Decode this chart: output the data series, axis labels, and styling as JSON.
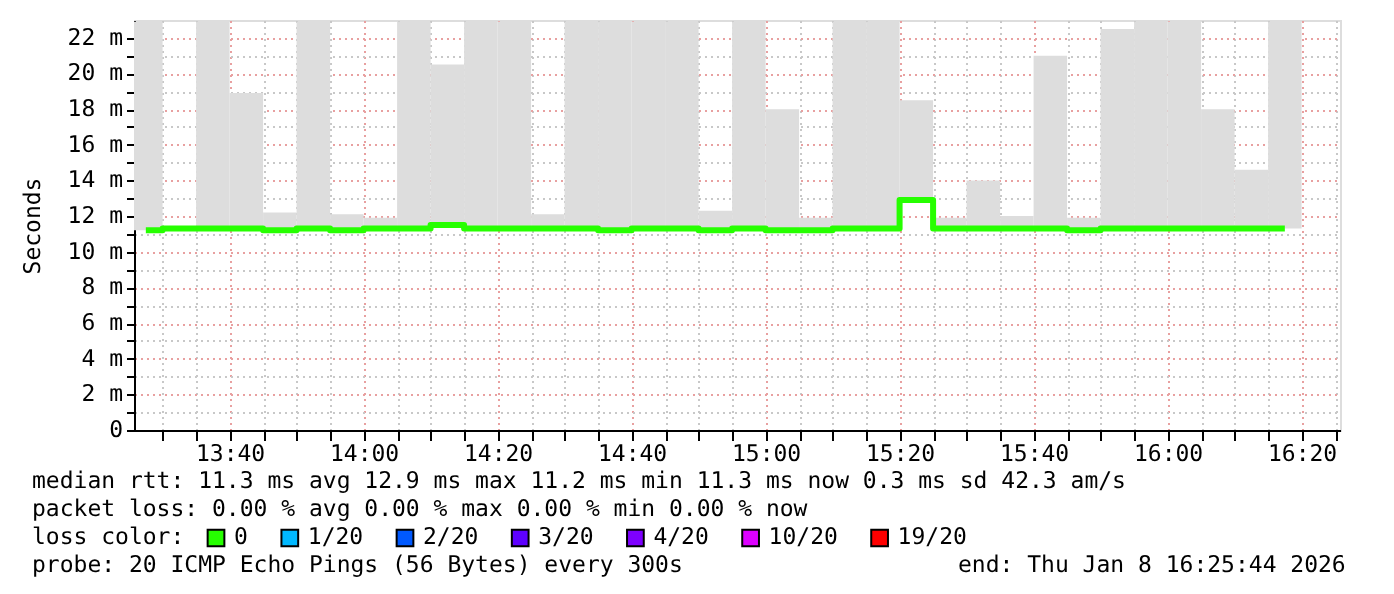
{
  "chart_data": {
    "type": "bar",
    "ylabel": "Seconds",
    "legend_title": "loss color:",
    "legend": "bottom",
    "grid": true,
    "x": [
      "2026-01-08T13:27:30",
      "2026-01-08T13:32:30",
      "2026-01-08T13:37:30",
      "2026-01-08T13:42:30",
      "2026-01-08T13:47:30",
      "2026-01-08T13:52:30",
      "2026-01-08T13:57:30",
      "2026-01-08T14:02:30",
      "2026-01-08T14:07:30",
      "2026-01-08T14:12:30",
      "2026-01-08T14:17:30",
      "2026-01-08T14:22:30",
      "2026-01-08T14:27:30",
      "2026-01-08T14:32:30",
      "2026-01-08T14:37:30",
      "2026-01-08T14:42:30",
      "2026-01-08T14:47:30",
      "2026-01-08T14:52:30",
      "2026-01-08T14:57:30",
      "2026-01-08T15:02:30",
      "2026-01-08T15:07:30",
      "2026-01-08T15:12:30",
      "2026-01-08T15:17:30",
      "2026-01-08T15:22:30",
      "2026-01-08T15:27:30",
      "2026-01-08T15:32:30",
      "2026-01-08T15:37:30",
      "2026-01-08T15:42:30",
      "2026-01-08T15:47:30",
      "2026-01-08T15:52:30",
      "2026-01-08T15:57:30",
      "2026-01-08T16:02:30",
      "2026-01-08T16:07:30",
      "2026-01-08T16:12:30",
      "2026-01-08T16:17:30"
    ],
    "series": [
      {
        "color": "#dddddd",
        "base": [
          11.2,
          11.3,
          11.3,
          11.3,
          11.2,
          11.3,
          11.2,
          11.3,
          11.3,
          11.5,
          11.3,
          11.3,
          11.3,
          11.3,
          11.2,
          11.3,
          11.3,
          11.2,
          11.3,
          11.2,
          11.2,
          11.3,
          11.3,
          12.9,
          11.3,
          11.3,
          11.3,
          11.3,
          11.2,
          11.3,
          11.3,
          11.3,
          11.3,
          11.3,
          11.3
        ],
        "values": [
          11.7,
          0.1,
          11.6,
          7.6,
          1.0,
          11.6,
          0.9,
          0.6,
          11.6,
          9.0,
          11.6,
          11.6,
          0.8,
          11.6,
          11.7,
          11.6,
          11.6,
          1.1,
          11.6,
          6.8,
          0.7,
          11.6,
          11.6,
          5.6,
          0.6,
          2.7,
          0.7,
          9.7,
          0.7,
          11.2,
          11.6,
          11.6,
          6.7,
          3.3,
          11.6
        ]
      },
      {
        "name": "0",
        "type": "step",
        "color": "#26ff00",
        "values": [
          11.2,
          11.3,
          11.3,
          11.3,
          11.2,
          11.3,
          11.2,
          11.3,
          11.3,
          11.5,
          11.3,
          11.3,
          11.3,
          11.3,
          11.2,
          11.3,
          11.3,
          11.2,
          11.3,
          11.2,
          11.2,
          11.3,
          11.3,
          12.9,
          11.3,
          11.3,
          11.3,
          11.3,
          11.2,
          11.3,
          11.3,
          11.3,
          11.3,
          11.3,
          11.3
        ]
      },
      {
        "name": "1/20",
        "type": "step",
        "color": "#00b8ff",
        "values": [
          null,
          null,
          null,
          null,
          null,
          null,
          null,
          null,
          null,
          null,
          null,
          null,
          null,
          null,
          null,
          null,
          null,
          null,
          null,
          null,
          null,
          null,
          null,
          null,
          null,
          null,
          null,
          null,
          null,
          null,
          null,
          null,
          null,
          null,
          null
        ]
      },
      {
        "name": "2/20",
        "type": "step",
        "color": "#0059ff",
        "values": [
          null,
          null,
          null,
          null,
          null,
          null,
          null,
          null,
          null,
          null,
          null,
          null,
          null,
          null,
          null,
          null,
          null,
          null,
          null,
          null,
          null,
          null,
          null,
          null,
          null,
          null,
          null,
          null,
          null,
          null,
          null,
          null,
          null,
          null,
          null
        ]
      },
      {
        "name": "3/20",
        "type": "step",
        "color": "#5e00ff",
        "values": [
          null,
          null,
          null,
          null,
          null,
          null,
          null,
          null,
          null,
          null,
          null,
          null,
          null,
          null,
          null,
          null,
          null,
          null,
          null,
          null,
          null,
          null,
          null,
          null,
          null,
          null,
          null,
          null,
          null,
          null,
          null,
          null,
          null,
          null,
          null
        ]
      },
      {
        "name": "4/20",
        "type": "step",
        "color": "#7e00ff",
        "values": [
          null,
          null,
          null,
          null,
          null,
          null,
          null,
          null,
          null,
          null,
          null,
          null,
          null,
          null,
          null,
          null,
          null,
          null,
          null,
          null,
          null,
          null,
          null,
          null,
          null,
          null,
          null,
          null,
          null,
          null,
          null,
          null,
          null,
          null,
          null
        ]
      },
      {
        "name": "10/20",
        "type": "step",
        "color": "#dd00ff",
        "values": [
          null,
          null,
          null,
          null,
          null,
          null,
          null,
          null,
          null,
          null,
          null,
          null,
          null,
          null,
          null,
          null,
          null,
          null,
          null,
          null,
          null,
          null,
          null,
          null,
          null,
          null,
          null,
          null,
          null,
          null,
          null,
          null,
          null,
          null,
          null
        ]
      },
      {
        "name": "19/20",
        "type": "step",
        "color": "#ff0000",
        "values": [
          null,
          null,
          null,
          null,
          null,
          null,
          null,
          null,
          null,
          null,
          null,
          null,
          null,
          null,
          null,
          null,
          null,
          null,
          null,
          null,
          null,
          null,
          null,
          null,
          null,
          null,
          null,
          null,
          null,
          null,
          null,
          null,
          null,
          null,
          null
        ]
      }
    ],
    "xlim": [
      "2026-01-08T13:25:44",
      "2026-01-08T16:25:44"
    ],
    "xticks": [
      {
        "value": "2026-01-08T13:30",
        "label": null
      },
      {
        "value": "2026-01-08T13:35",
        "label": null
      },
      {
        "value": "2026-01-08T13:40",
        "label": "13:40"
      },
      {
        "value": "2026-01-08T13:45",
        "label": null
      },
      {
        "value": "2026-01-08T13:50",
        "label": null
      },
      {
        "value": "2026-01-08T13:55",
        "label": null
      },
      {
        "value": "2026-01-08T14:00",
        "label": "14:00"
      },
      {
        "value": "2026-01-08T14:05",
        "label": null
      },
      {
        "value": "2026-01-08T14:10",
        "label": null
      },
      {
        "value": "2026-01-08T14:15",
        "label": null
      },
      {
        "value": "2026-01-08T14:20",
        "label": "14:20"
      },
      {
        "value": "2026-01-08T14:25",
        "label": null
      },
      {
        "value": "2026-01-08T14:30",
        "label": null
      },
      {
        "value": "2026-01-08T14:35",
        "label": null
      },
      {
        "value": "2026-01-08T14:40",
        "label": "14:40"
      },
      {
        "value": "2026-01-08T14:45",
        "label": null
      },
      {
        "value": "2026-01-08T14:50",
        "label": null
      },
      {
        "value": "2026-01-08T14:55",
        "label": null
      },
      {
        "value": "2026-01-08T15:00",
        "label": "15:00"
      },
      {
        "value": "2026-01-08T15:05",
        "label": null
      },
      {
        "value": "2026-01-08T15:10",
        "label": null
      },
      {
        "value": "2026-01-08T15:15",
        "label": null
      },
      {
        "value": "2026-01-08T15:20",
        "label": "15:20"
      },
      {
        "value": "2026-01-08T15:25",
        "label": null
      },
      {
        "value": "2026-01-08T15:30",
        "label": null
      },
      {
        "value": "2026-01-08T15:35",
        "label": null
      },
      {
        "value": "2026-01-08T15:40",
        "label": "15:40"
      },
      {
        "value": "2026-01-08T15:45",
        "label": null
      },
      {
        "value": "2026-01-08T15:50",
        "label": null
      },
      {
        "value": "2026-01-08T15:55",
        "label": null
      },
      {
        "value": "2026-01-08T16:00",
        "label": "16:00"
      },
      {
        "value": "2026-01-08T16:05",
        "label": null
      },
      {
        "value": "2026-01-08T16:10",
        "label": null
      },
      {
        "value": "2026-01-08T16:15",
        "label": null
      },
      {
        "value": "2026-01-08T16:20",
        "label": "16:20"
      },
      {
        "value": "2026-01-08T16:25",
        "label": null
      }
    ],
    "ylim": [
      0,
      23
    ],
    "yticks": [
      0,
      {
        "value": 1,
        "label": null
      },
      {
        "value": 2,
        "label": "2 m"
      },
      {
        "value": 3,
        "label": null
      },
      {
        "value": 4,
        "label": "4 m"
      },
      {
        "value": 5,
        "label": null
      },
      {
        "value": 6,
        "label": "6 m"
      },
      {
        "value": 7,
        "label": null
      },
      {
        "value": 8,
        "label": "8 m"
      },
      {
        "value": 9,
        "label": null
      },
      {
        "value": 10,
        "label": "10 m"
      },
      {
        "value": 11,
        "label": null
      },
      {
        "value": 12,
        "label": "12 m"
      },
      {
        "value": 13,
        "label": null
      },
      {
        "value": 14,
        "label": "14 m"
      },
      {
        "value": 15,
        "label": null
      },
      {
        "value": 16,
        "label": "16 m"
      },
      {
        "value": 17,
        "label": null
      },
      {
        "value": 18,
        "label": "18 m"
      },
      {
        "value": 19,
        "label": null
      },
      {
        "value": 20,
        "label": "20 m"
      },
      {
        "value": 21,
        "label": null
      },
      {
        "value": 22,
        "label": "22 m"
      }
    ],
    "annotations": [
      "median rtt:  11.3 ms avg  12.9 ms max  11.2 ms min  11.3 ms now  0.3 ms sd  42.3   am/s",
      "packet loss: 0.00 % avg  0.00 % max  0.00 % min  0.00 % now",
      "probe:       20 ICMP Echo Pings (56 Bytes) every 300s",
      "end: Thu Jan  8 16:25:44 2026"
    ]
  }
}
